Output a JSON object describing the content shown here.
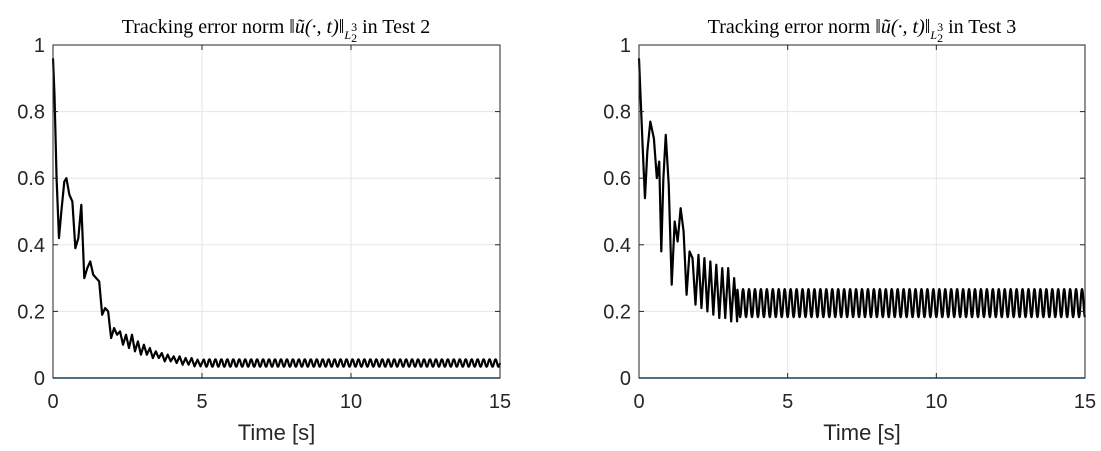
{
  "chart_data": [
    {
      "type": "line",
      "title_prefix": "Tracking error norm",
      "title_math": "‖ũ(·, t)‖",
      "title_norm_base": "L",
      "title_norm_sub": "2",
      "title_norm_sup": "3",
      "title_suffix": "in Test 2",
      "xlabel": "Time [s]",
      "ylabel": "",
      "xlim": [
        0,
        15
      ],
      "ylim": [
        0,
        1
      ],
      "xticks": [
        0,
        5,
        10,
        15
      ],
      "yticks": [
        0,
        0.2,
        0.4,
        0.6,
        0.8,
        1
      ],
      "ytick_labels": [
        "0",
        "0.2",
        "0.4",
        "0.6",
        "0.8",
        "1"
      ],
      "grid": true,
      "series_color": "#000000",
      "baseline_color": "#0072BD",
      "x": [
        0,
        0.05,
        0.12,
        0.2,
        0.28,
        0.38,
        0.45,
        0.55,
        0.65,
        0.75,
        0.85,
        0.95,
        1.05,
        1.15,
        1.25,
        1.35,
        1.45,
        1.55,
        1.65,
        1.75,
        1.85,
        1.95,
        2.05,
        2.15,
        2.25,
        2.35,
        2.45,
        2.55,
        2.65,
        2.75,
        2.85,
        2.95,
        3.05,
        3.15,
        3.25,
        3.35,
        3.45,
        3.55,
        3.65,
        3.75,
        3.85,
        3.95,
        4.05,
        4.15,
        4.25,
        4.35,
        4.45,
        4.55,
        4.65,
        4.75,
        4.85,
        4.95,
        5.05
      ],
      "values": [
        0.96,
        0.85,
        0.6,
        0.42,
        0.5,
        0.59,
        0.6,
        0.55,
        0.53,
        0.39,
        0.42,
        0.52,
        0.3,
        0.33,
        0.35,
        0.31,
        0.3,
        0.29,
        0.19,
        0.21,
        0.2,
        0.12,
        0.15,
        0.13,
        0.14,
        0.1,
        0.13,
        0.09,
        0.13,
        0.08,
        0.11,
        0.07,
        0.1,
        0.07,
        0.09,
        0.06,
        0.08,
        0.06,
        0.075,
        0.05,
        0.07,
        0.05,
        0.065,
        0.045,
        0.065,
        0.04,
        0.06,
        0.04,
        0.06,
        0.035,
        0.055,
        0.035,
        0.055
      ],
      "steady_oscillation": {
        "from_x": 5.05,
        "to_x": 15,
        "center": 0.045,
        "amplitude": 0.011,
        "period": 0.2
      }
    },
    {
      "type": "line",
      "title_prefix": "Tracking error norm",
      "title_math": "‖ũ(·, t)‖",
      "title_norm_base": "L",
      "title_norm_sub": "2",
      "title_norm_sup": "3",
      "title_suffix": "in Test 3",
      "xlabel": "Time [s]",
      "ylabel": "",
      "xlim": [
        0,
        15
      ],
      "ylim": [
        0,
        1
      ],
      "xticks": [
        0,
        5,
        10,
        15
      ],
      "yticks": [
        0,
        0.2,
        0.4,
        0.6,
        0.8,
        1
      ],
      "ytick_labels": [
        "0",
        "0.2",
        "0.4",
        "0.6",
        "0.8",
        "1"
      ],
      "grid": true,
      "series_color": "#000000",
      "baseline_color": "#0072BD",
      "x": [
        0,
        0.05,
        0.12,
        0.2,
        0.28,
        0.38,
        0.5,
        0.6,
        0.68,
        0.75,
        0.82,
        0.9,
        1.0,
        1.1,
        1.2,
        1.3,
        1.4,
        1.5,
        1.6,
        1.7,
        1.8,
        1.9,
        2.0,
        2.1,
        2.2,
        2.3,
        2.4,
        2.5,
        2.6,
        2.7,
        2.8,
        2.9,
        3.0,
        3.1,
        3.2,
        3.3
      ],
      "values": [
        0.96,
        0.85,
        0.7,
        0.54,
        0.68,
        0.77,
        0.72,
        0.6,
        0.65,
        0.38,
        0.6,
        0.73,
        0.58,
        0.28,
        0.47,
        0.41,
        0.51,
        0.44,
        0.25,
        0.38,
        0.36,
        0.22,
        0.37,
        0.21,
        0.36,
        0.2,
        0.35,
        0.19,
        0.34,
        0.18,
        0.33,
        0.18,
        0.33,
        0.17,
        0.3,
        0.17
      ],
      "steady_oscillation": {
        "from_x": 3.3,
        "to_x": 15,
        "center": 0.225,
        "amplitude": 0.042,
        "period": 0.2
      }
    }
  ]
}
